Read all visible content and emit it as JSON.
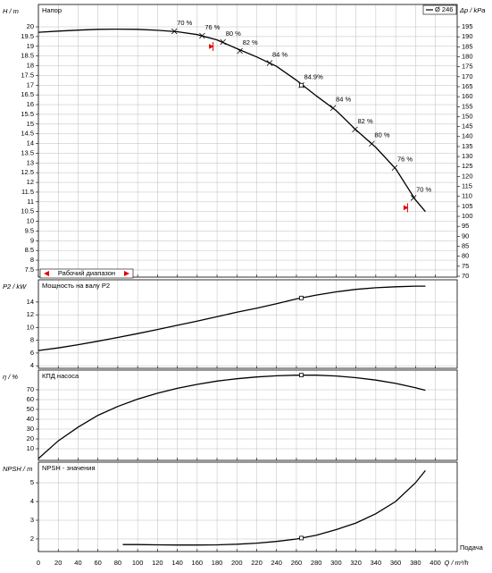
{
  "chart_data": [
    {
      "type": "line",
      "title": "Напор",
      "y_label": "H / m",
      "y2_label": "Δp / kPa",
      "x": [
        0,
        20,
        40,
        60,
        80,
        100,
        120,
        140,
        160,
        180,
        200,
        220,
        240,
        260,
        280,
        300,
        320,
        340,
        360,
        380,
        390
      ],
      "series": [
        {
          "name": "Ø 246",
          "color": "#000000",
          "values": [
            19.72,
            19.78,
            19.83,
            19.87,
            19.88,
            19.87,
            19.82,
            19.75,
            19.6,
            19.33,
            18.88,
            18.45,
            17.97,
            17.25,
            16.45,
            15.7,
            14.7,
            13.8,
            12.7,
            11.1,
            10.5
          ]
        }
      ],
      "markers": {
        "x": [
          137,
          165,
          186,
          203,
          233,
          265,
          297,
          319,
          336,
          359,
          378
        ],
        "y": [
          19.77,
          19.54,
          19.22,
          18.76,
          18.14,
          17.0,
          15.83,
          14.72,
          13.99,
          12.75,
          11.2
        ],
        "values": [
          70,
          76,
          80,
          82,
          84,
          84.9,
          84,
          82,
          80,
          76,
          70
        ],
        "value_labels": [
          "70 %",
          "76 %",
          "80 %",
          "82 %",
          "84 %",
          "84.9%",
          "84 %",
          "82 %",
          "80 %",
          "76 %",
          "70 %"
        ]
      },
      "duty_point": {
        "x": 265,
        "y": 17.0
      },
      "operating_range": {
        "label": "Рабочий диапазон",
        "x": [
          176,
          372
        ],
        "y": [
          18.99,
          10.7
        ],
        "color": "#e00000"
      },
      "xlim": [
        0,
        422
      ],
      "xticks": [
        0,
        20,
        40,
        60,
        80,
        100,
        120,
        140,
        160,
        180,
        200,
        220,
        240,
        260,
        280,
        300,
        320,
        340,
        360,
        380,
        400
      ],
      "ylim": [
        7.13,
        21.15
      ],
      "yticks": [
        7.5,
        8,
        8.5,
        9,
        9.5,
        10,
        10.5,
        11,
        11.5,
        12,
        12.5,
        13,
        13.5,
        14,
        14.5,
        15,
        15.5,
        16,
        16.5,
        17,
        17.5,
        18,
        18.5,
        19,
        19.5,
        20
      ],
      "y2lim": [
        69.55,
        206.2
      ],
      "y2ticks": [
        70,
        75,
        80,
        85,
        90,
        95,
        100,
        105,
        110,
        115,
        120,
        125,
        130,
        135,
        140,
        145,
        150,
        155,
        160,
        165,
        170,
        175,
        180,
        185,
        190,
        195
      ],
      "grid": true,
      "legend": "top-right"
    },
    {
      "type": "line",
      "title": "Мощность на валу P2",
      "y_label": "P2 / kW",
      "x": [
        0,
        20,
        40,
        60,
        80,
        100,
        120,
        140,
        160,
        180,
        200,
        220,
        240,
        260,
        280,
        300,
        320,
        340,
        360,
        380,
        390
      ],
      "series": [
        {
          "color": "#000000",
          "values": [
            6.4,
            6.8,
            7.3,
            7.85,
            8.45,
            9.05,
            9.7,
            10.35,
            11.0,
            11.7,
            12.4,
            13.05,
            13.75,
            14.5,
            15.1,
            15.6,
            16.0,
            16.25,
            16.4,
            16.5,
            16.5
          ]
        }
      ],
      "duty_point": {
        "x": 265,
        "y": 14.65
      },
      "xlim": [
        0,
        422
      ],
      "xticks": [
        0,
        20,
        40,
        60,
        80,
        100,
        120,
        140,
        160,
        180,
        200,
        220,
        240,
        260,
        280,
        300,
        320,
        340,
        360,
        380,
        400
      ],
      "ylim": [
        3.6,
        17.5
      ],
      "yticks": [
        4,
        6,
        8,
        10,
        12,
        14
      ],
      "grid": true
    },
    {
      "type": "line",
      "title": "КПД насоса",
      "y_label": "η / %",
      "x": [
        0,
        20,
        40,
        60,
        80,
        100,
        120,
        140,
        160,
        180,
        200,
        220,
        240,
        260,
        280,
        300,
        320,
        340,
        360,
        380,
        390
      ],
      "series": [
        {
          "color": "#000000",
          "values": [
            0,
            18,
            32,
            44,
            53,
            60.5,
            66.5,
            71.5,
            75.5,
            78.8,
            81.2,
            83,
            84.2,
            84.85,
            84.8,
            84.0,
            82.3,
            79.8,
            76.5,
            72,
            69.5
          ]
        }
      ],
      "duty_point": {
        "x": 265,
        "y": 84.9
      },
      "xlim": [
        0,
        422
      ],
      "xticks": [
        0,
        20,
        40,
        60,
        80,
        100,
        120,
        140,
        160,
        180,
        200,
        220,
        240,
        260,
        280,
        300,
        320,
        340,
        360,
        380,
        400
      ],
      "ylim": [
        -1.8,
        90
      ],
      "yticks": [
        10,
        20,
        30,
        40,
        50,
        60,
        70
      ],
      "grid": true
    },
    {
      "type": "line",
      "title": "NPSH - значения",
      "y_label": "NPSH / m",
      "x_label": "Q / m³/h",
      "x_caption": "Подача",
      "x": [
        85,
        100,
        120,
        140,
        160,
        180,
        200,
        220,
        240,
        260,
        280,
        300,
        320,
        340,
        360,
        380,
        390
      ],
      "series": [
        {
          "color": "#000000",
          "values": [
            1.7,
            1.7,
            1.69,
            1.68,
            1.68,
            1.69,
            1.72,
            1.78,
            1.87,
            2.0,
            2.2,
            2.5,
            2.85,
            3.35,
            4.0,
            5.0,
            5.65
          ]
        }
      ],
      "duty_point": {
        "x": 265,
        "y": 2.05
      },
      "xlim": [
        0,
        422
      ],
      "xticks": [
        0,
        20,
        40,
        60,
        80,
        100,
        120,
        140,
        160,
        180,
        200,
        220,
        240,
        260,
        280,
        300,
        320,
        340,
        360,
        380,
        400
      ],
      "ylim": [
        1.33,
        6.1
      ],
      "yticks": [
        2,
        3,
        4,
        5
      ],
      "grid": true
    }
  ]
}
